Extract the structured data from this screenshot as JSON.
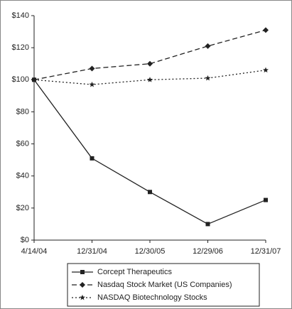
{
  "chart_data": {
    "type": "line",
    "categories": [
      "4/14/04",
      "12/31/04",
      "12/30/05",
      "12/29/06",
      "12/31/07"
    ],
    "series": [
      {
        "name": "Corcept Therapeutics",
        "color": "#222222",
        "dash": "solid",
        "marker": "square",
        "values": [
          100,
          51,
          30,
          10,
          25
        ]
      },
      {
        "name": "Nasdaq Stock Market (US Companies)",
        "color": "#222222",
        "dash": "dashed",
        "marker": "diamond",
        "values": [
          100,
          107,
          110,
          121,
          131
        ]
      },
      {
        "name": "NASDAQ Biotechnology Stocks",
        "color": "#222222",
        "dash": "dotted",
        "marker": "star",
        "values": [
          100,
          97,
          100,
          101,
          106
        ]
      }
    ],
    "ylim": [
      0,
      140
    ],
    "yticks": [
      {
        "value": 0,
        "label": "$0"
      },
      {
        "value": 20,
        "label": "$20"
      },
      {
        "value": 40,
        "label": "$40"
      },
      {
        "value": 60,
        "label": "$60"
      },
      {
        "value": 80,
        "label": "$80"
      },
      {
        "value": 100,
        "label": "$100"
      },
      {
        "value": 120,
        "label": "$120"
      },
      {
        "value": 140,
        "label": "$140"
      }
    ],
    "grid": false,
    "legend": "bottom"
  }
}
